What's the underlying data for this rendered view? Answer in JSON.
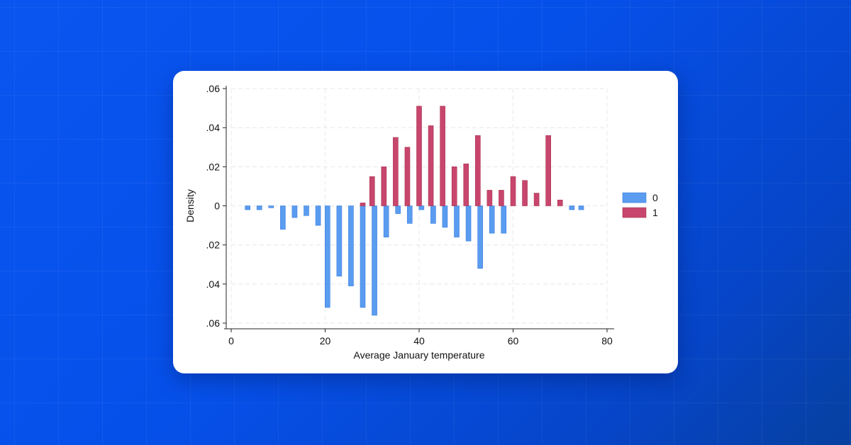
{
  "chart_data": {
    "type": "bar",
    "subtype": "mirrored-histogram",
    "xlabel": "Average January temperature",
    "ylabel": "Density",
    "xlim": [
      0,
      80
    ],
    "ylim": [
      -0.06,
      0.06
    ],
    "xticks": [
      0,
      20,
      40,
      60,
      80
    ],
    "yticks": [
      {
        "value": 0.06,
        "label": ".06"
      },
      {
        "value": 0.04,
        "label": ".04"
      },
      {
        "value": 0.02,
        "label": ".02"
      },
      {
        "value": 0,
        "label": "0"
      },
      {
        "value": -0.02,
        "label": ".02"
      },
      {
        "value": -0.04,
        "label": ".04"
      },
      {
        "value": -0.06,
        "label": ".06"
      }
    ],
    "grid": true,
    "legend_position": "right",
    "series": [
      {
        "name": "0",
        "color": "#5a9cf0",
        "direction": "down",
        "x": [
          3.5,
          6,
          8.5,
          11,
          13.5,
          16,
          18.5,
          20.5,
          23,
          25.5,
          28,
          30.5,
          33,
          35.5,
          38,
          40.5,
          43,
          45.5,
          48,
          50.5,
          53,
          55.5,
          58,
          72.5,
          74.5
        ],
        "values": [
          0.002,
          0.002,
          0.001,
          0.012,
          0.006,
          0.005,
          0.01,
          0.052,
          0.036,
          0.041,
          0.052,
          0.056,
          0.016,
          0.004,
          0.009,
          0.002,
          0.009,
          0.011,
          0.016,
          0.018,
          0.032,
          0.014,
          0.014,
          0.002,
          0.002
        ]
      },
      {
        "name": "1",
        "color": "#c8466d",
        "direction": "up",
        "x": [
          28,
          30,
          32.5,
          35,
          37.5,
          40,
          42.5,
          45,
          47.5,
          50,
          52.5,
          55,
          57.5,
          60,
          62.5,
          65,
          67.5,
          70
        ],
        "values": [
          0.0015,
          0.015,
          0.02,
          0.035,
          0.03,
          0.051,
          0.041,
          0.051,
          0.02,
          0.0215,
          0.036,
          0.008,
          0.008,
          0.015,
          0.013,
          0.0065,
          0.036,
          0.003
        ]
      }
    ]
  }
}
